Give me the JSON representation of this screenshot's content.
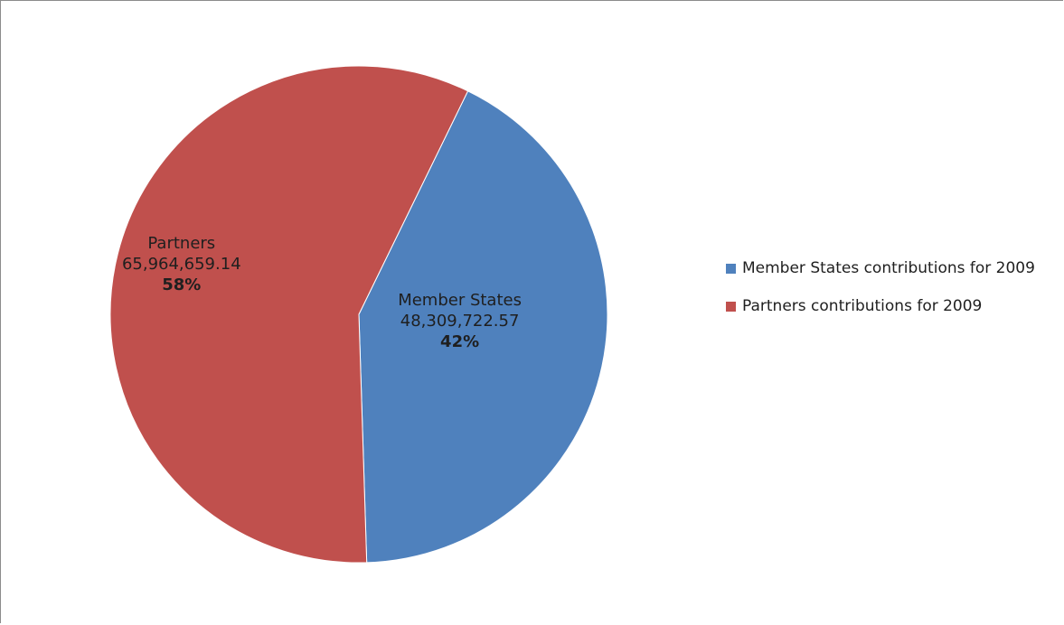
{
  "chart_data": {
    "type": "pie",
    "title": "",
    "slices": [
      {
        "label": "Member States",
        "value": 48309722.57,
        "value_text": "48,309,722.57",
        "percent_text": "42%",
        "color": "#4f81bd"
      },
      {
        "label": "Partners",
        "value": 65964659.14,
        "value_text": "65,964,659.14",
        "percent_text": "58%",
        "color": "#c0504d"
      }
    ],
    "legend": {
      "placement": "right",
      "items": [
        {
          "label": "Member States contributions for 2009",
          "color": "#4f81bd"
        },
        {
          "label": "Partners contributions for 2009",
          "color": "#c0504d"
        }
      ]
    }
  }
}
